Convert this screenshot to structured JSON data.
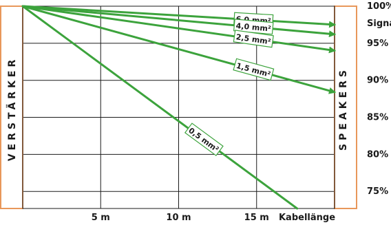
{
  "chart_data": {
    "type": "line",
    "xlabel": "Kabellänge",
    "ylabel_top": "Signal",
    "left_label": "VERSTÄRKER",
    "right_label": "SPEAKERS",
    "x_ticks": [
      {
        "value": 5,
        "label": "5 m"
      },
      {
        "value": 10,
        "label": "10 m"
      },
      {
        "value": 15,
        "label": "15 m"
      }
    ],
    "y_ticks": [
      {
        "value": 100,
        "label": "100%"
      },
      {
        "value": 95,
        "label": "95%"
      },
      {
        "value": 90,
        "label": "90%"
      },
      {
        "value": 85,
        "label": "85%"
      },
      {
        "value": 80,
        "label": "80%"
      },
      {
        "value": 75,
        "label": "75%"
      }
    ],
    "xlim": [
      0,
      20
    ],
    "ylim": [
      72.7,
      100
    ],
    "grid": true,
    "series": [
      {
        "name": "6,0 mm²",
        "points": [
          [
            0,
            100
          ],
          [
            20,
            97.5
          ]
        ],
        "arrow": true
      },
      {
        "name": "4,0 mm²",
        "points": [
          [
            0,
            100
          ],
          [
            20,
            96.2
          ]
        ],
        "arrow": true
      },
      {
        "name": "2,5 mm²",
        "points": [
          [
            0,
            100
          ],
          [
            20,
            94.0
          ]
        ],
        "arrow": true
      },
      {
        "name": "1,5 mm²",
        "points": [
          [
            0,
            100
          ],
          [
            20,
            88.4
          ]
        ],
        "arrow": true
      },
      {
        "name": "0,5 mm²",
        "points": [
          [
            0,
            100
          ],
          [
            17.6,
            72.7
          ]
        ],
        "arrow": false
      }
    ],
    "colors": {
      "line": "#3ca33c",
      "frame": "#e8975a",
      "grid": "#1a1a1a",
      "text": "#1a1a1a"
    }
  }
}
